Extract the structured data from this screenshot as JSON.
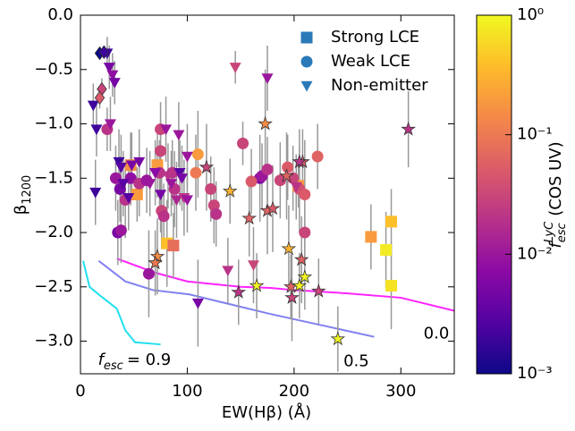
{
  "chart_data": {
    "type": "scatter",
    "xlabel": "EW(Hβ) (Å)",
    "ylabel": {
      "base": "β",
      "sub": "1200"
    },
    "xlim": [
      0,
      350
    ],
    "ylim": [
      -3.3,
      0
    ],
    "xticks": [
      0,
      100,
      200,
      300
    ],
    "yticks": [
      {
        "value": 0,
        "label": "0.0"
      },
      {
        "value": -0.5,
        "label": "−0.5"
      },
      {
        "value": -1,
        "label": "−1.0"
      },
      {
        "value": -1.5,
        "label": "−1.5"
      },
      {
        "value": -2,
        "label": "−2.0"
      },
      {
        "value": -2.5,
        "label": "−2.5"
      },
      {
        "value": -3,
        "label": "−3.0"
      }
    ],
    "legend": "upper right",
    "legend_color": "#2a7ab9",
    "colorbar": {
      "cmap": "plasma",
      "scale": "log",
      "lim": [
        0.001,
        1
      ],
      "ticks": [
        {
          "value": 0.001,
          "label": "10⁻³"
        },
        {
          "value": 0.01,
          "label": "10⁻²"
        },
        {
          "value": 0.1,
          "label": "10⁻¹"
        },
        {
          "value": 1,
          "label": "10⁰"
        }
      ],
      "label": {
        "base": "f",
        "sub": "esc",
        "sup": "LyC",
        "text": "(COS UV)"
      }
    },
    "series": [
      {
        "name": "Strong LCE",
        "marker": "square",
        "x": [
          47,
          72,
          53,
          81,
          87,
          204,
          272,
          291,
          286,
          291
        ],
        "values": [
          -1.38,
          -1.38,
          -1.65,
          -2.1,
          -2.12,
          -1.57,
          -2.04,
          -1.9,
          -2.16,
          -2.49
        ],
        "fesc": [
          0.15,
          0.2,
          0.2,
          0.4,
          0.08,
          0.2,
          0.2,
          0.4,
          0.8,
          0.7
        ],
        "yerr": [
          0.3,
          0.3,
          0.25,
          0.4,
          0.3,
          0.2,
          0.3,
          0.3,
          0.35,
          0.4
        ]
      },
      {
        "name": "Weak LCE",
        "marker": "circle",
        "x": [
          33,
          37,
          42,
          35,
          38,
          47,
          55,
          62,
          75,
          75,
          74,
          76,
          78,
          86,
          88,
          108,
          110,
          122,
          125,
          127,
          152,
          168,
          170,
          175,
          187,
          194,
          199,
          205,
          210,
          222,
          210,
          64,
          25,
          160
        ],
        "values": [
          -1.5,
          -1.6,
          -1.7,
          -2.0,
          -1.98,
          -1.5,
          -1.55,
          -1.52,
          -1.05,
          -1.25,
          -1.45,
          -1.8,
          -1.85,
          -1.45,
          -1.6,
          -1.45,
          -1.28,
          -1.6,
          -1.75,
          -1.83,
          -1.18,
          -1.5,
          -1.48,
          -1.42,
          -1.52,
          -1.4,
          -1.5,
          -1.6,
          -1.65,
          -1.3,
          -2.0,
          -2.38,
          -1.05,
          -1.53
        ],
        "fesc": [
          0.01,
          0.005,
          0.02,
          0.005,
          0.01,
          0.008,
          0.02,
          0.01,
          0.03,
          0.03,
          0.02,
          0.03,
          0.02,
          0.02,
          0.02,
          0.1,
          0.2,
          0.03,
          0.03,
          0.02,
          0.03,
          0.006,
          0.01,
          0.02,
          0.03,
          0.05,
          0.03,
          0.04,
          0.05,
          0.06,
          0.03,
          0.01,
          0.02,
          0.05
        ],
        "yerr": [
          0.3,
          0.3,
          0.35,
          0.3,
          0.3,
          0.25,
          0.3,
          0.3,
          0.25,
          0.3,
          0.3,
          0.35,
          0.3,
          0.3,
          0.35,
          0.35,
          0.4,
          0.3,
          0.35,
          0.3,
          0.2,
          0.4,
          0.3,
          0.3,
          0.35,
          0.3,
          0.3,
          0.4,
          0.5,
          0.3,
          0.3,
          0.4,
          0.2,
          0.3
        ]
      },
      {
        "name": "Non-emitter",
        "marker": "triangle",
        "x": [
          12,
          15,
          14,
          25,
          27,
          30,
          32,
          28,
          36,
          38,
          40,
          45,
          48,
          55,
          65,
          70,
          75,
          80,
          82,
          85,
          90,
          92,
          93,
          95,
          100,
          97,
          100,
          110,
          145,
          175,
          138,
          162,
          202
        ],
        "values": [
          -0.83,
          -1.05,
          -1.63,
          -0.35,
          -0.48,
          -0.55,
          -0.62,
          -1.0,
          -1.35,
          -1.4,
          -1.55,
          -1.68,
          -1.38,
          -1.35,
          -1.55,
          -1.45,
          -1.65,
          -1.05,
          -1.48,
          -1.55,
          -1.7,
          -1.1,
          -1.45,
          -1.5,
          -1.3,
          -1.68,
          -1.7,
          -2.65,
          -0.48,
          -0.58,
          -2.35,
          -2.3,
          -1.58
        ],
        "fesc": [
          0.002,
          0.002,
          0.002,
          0.002,
          0.005,
          0.008,
          0.005,
          0.01,
          0.002,
          0.003,
          0.003,
          0.003,
          0.005,
          0.005,
          0.01,
          0.007,
          0.005,
          0.01,
          0.02,
          0.01,
          0.015,
          0.01,
          0.003,
          0.005,
          0.01,
          0.02,
          0.01,
          0.005,
          0.03,
          0.01,
          0.02,
          0.03,
          0.02
        ],
        "yerr": [
          0.2,
          0.25,
          0.3,
          0.15,
          0.2,
          0.2,
          0.2,
          0.25,
          0.3,
          0.3,
          0.3,
          0.3,
          0.3,
          0.3,
          0.3,
          0.3,
          0.35,
          0.3,
          0.3,
          0.3,
          0.35,
          0.3,
          0.3,
          0.3,
          0.3,
          0.35,
          0.3,
          0.4,
          0.15,
          0.3,
          0.3,
          0.35,
          0.3
        ]
      },
      {
        "marker": "diamond",
        "x": [
          18,
          22,
          20,
          18
        ],
        "values": [
          -0.35,
          -0.34,
          -0.68,
          -0.76
        ],
        "fesc": [
          0.001,
          0.002,
          0.03,
          0.05
        ],
        "yerr": [
          0.05,
          0.05,
          0.1,
          0.1
        ]
      },
      {
        "marker": "star",
        "x": [
          72,
          70,
          118,
          140,
          158,
          148,
          165,
          175,
          173,
          180,
          193,
          195,
          197,
          198,
          205,
          210,
          207,
          208,
          223,
          241,
          307,
          205
        ],
        "values": [
          -2.22,
          -2.28,
          -1.4,
          -1.62,
          -1.87,
          -2.55,
          -2.49,
          -1.8,
          -1.0,
          -1.78,
          -1.48,
          -2.15,
          -2.5,
          -2.6,
          -2.49,
          -2.41,
          -2.25,
          -1.35,
          -2.54,
          -2.98,
          -1.05,
          -1.35
        ],
        "fesc": [
          0.15,
          0.1,
          0.03,
          0.3,
          0.06,
          0.02,
          0.9,
          0.06,
          0.15,
          0.05,
          0.06,
          0.3,
          0.06,
          0.03,
          0.9,
          0.9,
          0.06,
          0.05,
          0.03,
          0.9,
          0.02,
          0.02
        ],
        "yerr": [
          0.35,
          0.3,
          0.4,
          0.3,
          0.35,
          0.3,
          0.3,
          0.4,
          0.5,
          0.4,
          0.4,
          0.4,
          0.3,
          0.4,
          0.3,
          0.3,
          0.4,
          0.3,
          0.3,
          0.3,
          0.35,
          0.3
        ]
      }
    ],
    "curves": [
      {
        "color": "#ff22ff",
        "label": "0.0",
        "x": [
          34,
          70,
          100,
          150,
          178,
          200,
          250,
          300,
          350
        ],
        "values": [
          -2.24,
          -2.37,
          -2.45,
          -2.5,
          -2.51,
          -2.53,
          -2.56,
          -2.6,
          -2.72
        ]
      },
      {
        "color": "#8080f0",
        "label": "0.5",
        "x": [
          17,
          42,
          68,
          102,
          178,
          275
        ],
        "values": [
          -2.26,
          -2.45,
          -2.53,
          -2.57,
          -2.75,
          -2.96
        ]
      },
      {
        "color": "#22e0f0",
        "label": "= 0.9",
        "label_var": {
          "base": "f",
          "sub": "esc"
        },
        "x": [
          2.5,
          8.5,
          17,
          34,
          42,
          51,
          75
        ],
        "values": [
          -2.26,
          -2.5,
          -2.57,
          -2.7,
          -2.9,
          -3.01,
          -3.03
        ]
      }
    ]
  }
}
